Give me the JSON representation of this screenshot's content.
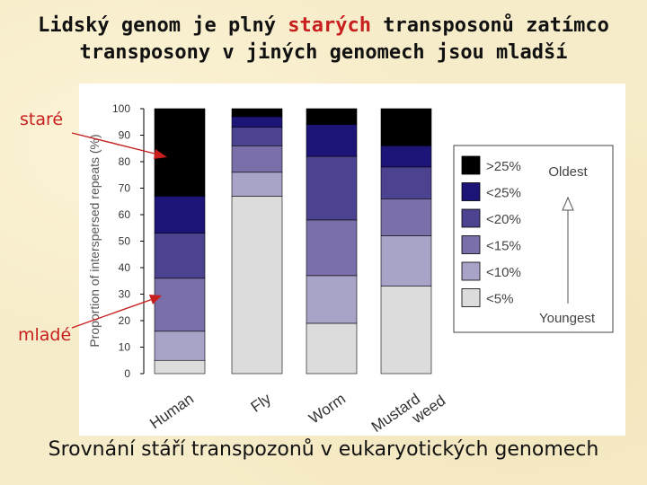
{
  "title": {
    "line1_before": "Lidský genom je plný ",
    "line1_highlight": "starých",
    "line1_after": " transposonů zatímco",
    "line2": "transposony v jiných genomech jsou mladší"
  },
  "labels": {
    "old": "staré",
    "young": "mladé"
  },
  "caption": "Srovnání stáří transpozonů v eukaryotických genomech",
  "colors": {
    "title_highlight": "#c81e1e",
    "arrows": "#c81e1e",
    "segments": [
      "#dcdcdc",
      "#a8a4c8",
      "#7a6fa9",
      "#4c4390",
      "#1c1477",
      "#000000"
    ]
  },
  "chart_data": {
    "type": "bar",
    "stacked": true,
    "ylabel": "Proportion of interspersed repeats (%)",
    "ylim": [
      0,
      100
    ],
    "yticks": [
      0,
      10,
      20,
      30,
      40,
      50,
      60,
      70,
      80,
      90,
      100
    ],
    "categories": [
      "Human",
      "Fly",
      "Worm",
      "Mustard weed"
    ],
    "category_lines": [
      [
        "Human"
      ],
      [
        "Fly"
      ],
      [
        "Worm"
      ],
      [
        "Mustard",
        "weed"
      ]
    ],
    "series": [
      {
        "name": "<5%",
        "values": [
          5,
          67,
          19,
          33
        ]
      },
      {
        "name": "<10%",
        "values": [
          11,
          9,
          18,
          19
        ]
      },
      {
        "name": "<15%",
        "values": [
          20,
          10,
          21,
          14
        ]
      },
      {
        "name": "<20%",
        "values": [
          17,
          7,
          24,
          12
        ]
      },
      {
        "name": "<25%",
        "values": [
          14,
          4,
          12,
          8
        ]
      },
      {
        "name": ">25%",
        "values": [
          33,
          3,
          6,
          14
        ]
      }
    ],
    "legend_position": "right",
    "legend_arrow": {
      "top": "Oldest",
      "bottom": "Youngest"
    },
    "grid": false
  }
}
